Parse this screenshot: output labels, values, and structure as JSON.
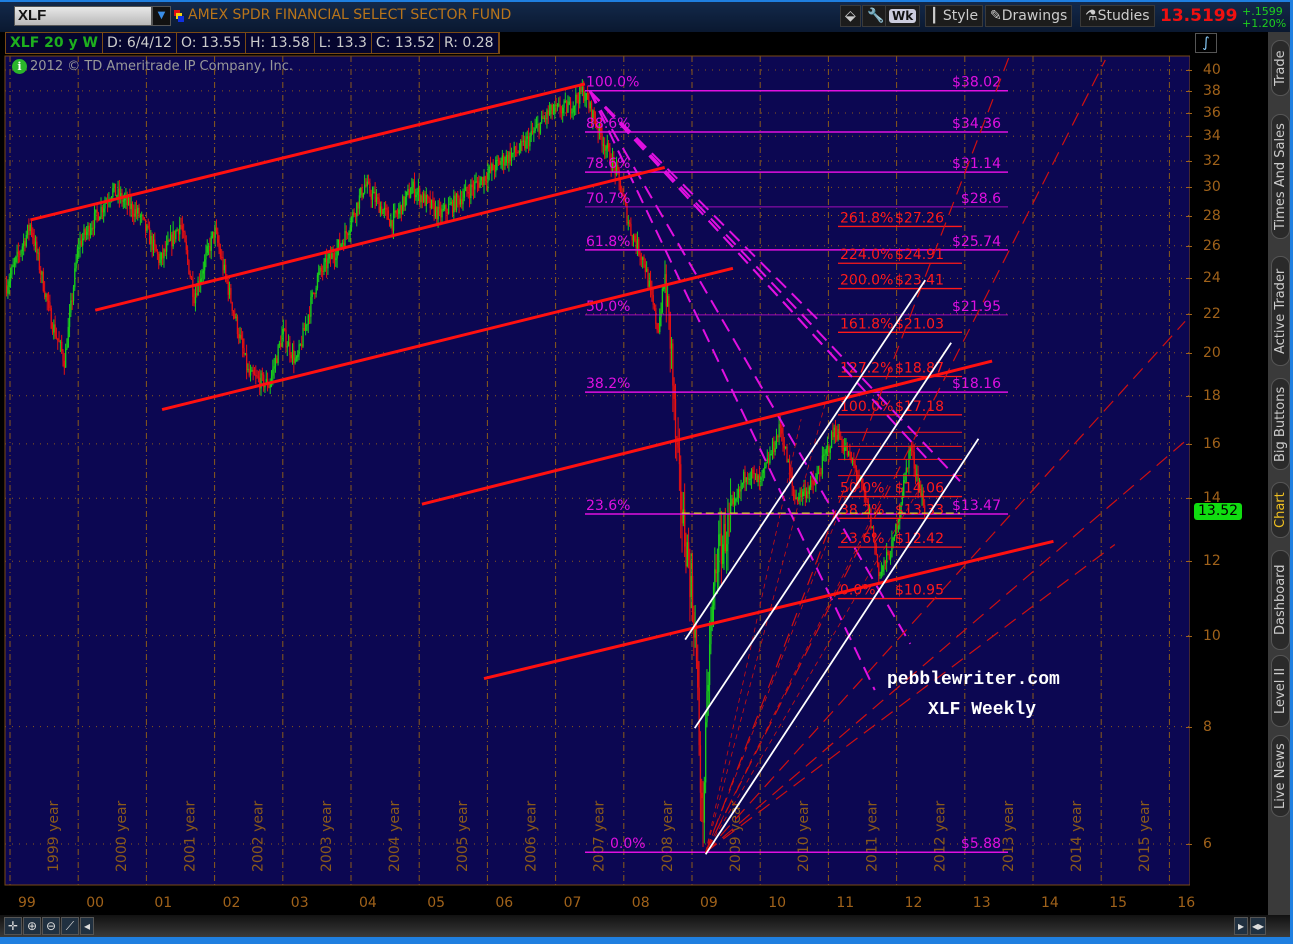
{
  "window": {
    "symbol": "XLF",
    "description": "AMEX SPDR FINANCIAL SELECT SECTOR FUND",
    "last": "13.5199",
    "change": "+.1599",
    "change_pct": "+1.20%"
  },
  "toolbar": {
    "interval": "Wk",
    "style": "Style",
    "drawings": "Drawings",
    "studies": "Studies"
  },
  "header": {
    "title": "XLF 20 y W",
    "date": "D: 6/4/12",
    "open": "O: 13.55",
    "high": "H: 13.58",
    "low": "L: 13.3",
    "close": "C: 13.52",
    "range": "R: 0.28"
  },
  "copyright": "2012 © TD Ameritrade IP Company, Inc.",
  "right_tabs": [
    "Trade",
    "Times And Sales",
    "Active Trader",
    "Big Buttons",
    "Chart",
    "Dashboard",
    "Level II",
    "Live News"
  ],
  "active_tab": "Chart",
  "watermark": {
    "line1": "pebblewriter.com",
    "line2": "XLF Weekly"
  },
  "colors": {
    "background": "#0c0752",
    "up": "#19d019",
    "down": "#e81010",
    "fib": "#e010e0",
    "ext": "#ff1a1a",
    "trend": "#ff1010",
    "channel": "#ffffff",
    "axis": "#a0621a",
    "last_badge": "#10dd10"
  },
  "chart_data": {
    "type": "candlestick",
    "scale": "log",
    "ylim": [
      5.6,
      41
    ],
    "xlim": [
      1998.9,
      2016.2
    ],
    "y_ticks": [
      "40",
      "38",
      "36",
      "34",
      "32",
      "30",
      "28",
      "26",
      "24",
      "22",
      "20",
      "18",
      "16",
      "14",
      "12",
      "10",
      "8",
      "6"
    ],
    "x_ticks": [
      "99",
      "00",
      "01",
      "02",
      "03",
      "04",
      "05",
      "06",
      "07",
      "08",
      "09",
      "10",
      "11",
      "12",
      "13",
      "14",
      "15",
      "16"
    ],
    "year_labels": [
      "1999 year",
      "2000 year",
      "2001 year",
      "2002 year",
      "2003 year",
      "2004 year",
      "2005 year",
      "2006 year",
      "2007 year",
      "2008 year",
      "2009 year",
      "2010 year",
      "2011 year",
      "2012 year",
      "2013 year",
      "2014 year",
      "2015 year"
    ],
    "last_price": "13.52",
    "price_path": [
      [
        1998.95,
        23.6
      ],
      [
        1999.3,
        27.4
      ],
      [
        1999.6,
        21.7
      ],
      [
        1999.8,
        19.6
      ],
      [
        2000.0,
        26
      ],
      [
        2000.5,
        29.8
      ],
      [
        2000.9,
        28
      ],
      [
        2001.2,
        25
      ],
      [
        2001.5,
        27.5
      ],
      [
        2001.7,
        23
      ],
      [
        2002.0,
        27
      ],
      [
        2002.5,
        18.9
      ],
      [
        2002.8,
        18.5
      ],
      [
        2003.0,
        21
      ],
      [
        2003.2,
        19.5
      ],
      [
        2003.5,
        24
      ],
      [
        2003.9,
        26.5
      ],
      [
        2004.2,
        30.2
      ],
      [
        2004.6,
        27.5
      ],
      [
        2004.9,
        30
      ],
      [
        2005.3,
        28
      ],
      [
        2005.9,
        30.5
      ],
      [
        2006.2,
        32
      ],
      [
        2006.5,
        33
      ],
      [
        2006.9,
        36
      ],
      [
        2007.2,
        36.5
      ],
      [
        2007.4,
        38
      ],
      [
        2007.6,
        35
      ],
      [
        2007.9,
        31
      ],
      [
        2008.1,
        27
      ],
      [
        2008.3,
        25
      ],
      [
        2008.5,
        21.1
      ],
      [
        2008.6,
        24
      ],
      [
        2008.7,
        20
      ],
      [
        2008.75,
        16.5
      ],
      [
        2008.85,
        13.5
      ],
      [
        2008.95,
        12
      ],
      [
        2009.05,
        10
      ],
      [
        2009.15,
        6.2
      ],
      [
        2009.25,
        9.5
      ],
      [
        2009.35,
        12
      ],
      [
        2009.6,
        13.5
      ],
      [
        2009.8,
        15
      ],
      [
        2010.0,
        14.5
      ],
      [
        2010.3,
        16.7
      ],
      [
        2010.5,
        14
      ],
      [
        2010.8,
        14.5
      ],
      [
        2011.1,
        16.6
      ],
      [
        2011.4,
        15
      ],
      [
        2011.6,
        13.5
      ],
      [
        2011.75,
        11.6
      ],
      [
        2011.95,
        12.5
      ],
      [
        2012.2,
        15.9
      ],
      [
        2012.42,
        13.52
      ]
    ],
    "fib_retracement": [
      {
        "pct": "100.0%",
        "price": "$38.02",
        "value": 38.02
      },
      {
        "pct": "88.6%",
        "price": "$34.36",
        "value": 34.36
      },
      {
        "pct": "78.6%",
        "price": "$31.14",
        "value": 31.14
      },
      {
        "pct": "70.7%",
        "price": "$28.6",
        "value": 28.6
      },
      {
        "pct": "61.8%",
        "price": "$25.74",
        "value": 25.74
      },
      {
        "pct": "50.0%",
        "price": "$21.95",
        "value": 21.95
      },
      {
        "pct": "38.2%",
        "price": "$18.16",
        "value": 18.16
      },
      {
        "pct": "23.6%",
        "price": "$13.47",
        "value": 13.47
      },
      {
        "pct": "0.0%",
        "price": "$5.88",
        "value": 5.88
      }
    ],
    "fib_extension": [
      {
        "pct": "261.8%",
        "price": "$27.26",
        "value": 27.26
      },
      {
        "pct": "224.0%",
        "price": "$24.91",
        "value": 24.91
      },
      {
        "pct": "200.0%",
        "price": "$23.41",
        "value": 23.41
      },
      {
        "pct": "161.8%",
        "price": "$21.03",
        "value": 21.03
      },
      {
        "pct": "127.2%",
        "price": "$18.87",
        "value": 18.87
      },
      {
        "pct": "100.0%",
        "price": "$17.18",
        "value": 17.18
      },
      {
        "pct": "50.0%",
        "price": "$14.06",
        "value": 14.06
      },
      {
        "pct": "38.2%",
        "price": "$13.33",
        "value": 13.33
      },
      {
        "pct": "23.6%",
        "price": "$12.42",
        "value": 12.42
      },
      {
        "pct": "0.0%",
        "price": "$10.95",
        "value": 10.95
      }
    ],
    "fib_extension_unlabeled": [
      16.46,
      15.9,
      15.4,
      14.8
    ],
    "trendlines": [
      [
        [
          1999.3,
          27.7
        ],
        [
          2007.43,
          38.66
        ]
      ],
      [
        [
          2000.25,
          22.2
        ],
        [
          2008.6,
          31.5
        ]
      ],
      [
        [
          2001.23,
          17.4
        ],
        [
          2009.6,
          24.6
        ]
      ],
      [
        [
          2005.04,
          13.8
        ],
        [
          2013.4,
          19.6
        ]
      ],
      [
        [
          2005.95,
          9.0
        ],
        [
          2014.3,
          12.6
        ]
      ]
    ],
    "channel_lines": [
      [
        [
          2008.9,
          9.9
        ],
        [
          2012.42,
          23.9
        ]
      ],
      [
        [
          2009.04,
          7.97
        ],
        [
          2012.8,
          20.5
        ]
      ],
      [
        [
          2009.2,
          5.85
        ],
        [
          2013.2,
          16.2
        ]
      ]
    ],
    "support_line": [
      [
        2008.85,
        13.5
      ],
      [
        2012.93,
        13.5
      ]
    ],
    "fan_origin_high": [
      2007.5,
      38.0
    ],
    "fan_ends_high": [
      [
        2011.68,
        8.75
      ],
      [
        2012.2,
        9.8
      ],
      [
        2012.49,
        15.3
      ],
      [
        2012.93,
        14.6
      ],
      [
        2011.39,
        18.7
      ],
      [
        2010.9,
        21.5
      ]
    ],
    "fan_origin_low": [
      2009.2,
      5.88
    ],
    "fan_ends_low": [
      [
        2013.66,
        41.5
      ],
      [
        2015.06,
        41
      ],
      [
        2016.23,
        21.6
      ],
      [
        2016.23,
        16.1
      ],
      [
        2015.2,
        12.5
      ]
    ],
    "fan_thin_ends": [
      [
        2010.6,
        17
      ],
      [
        2011.0,
        18.2
      ],
      [
        2011.4,
        15
      ],
      [
        2011.9,
        14.6
      ],
      [
        2012.3,
        14.2
      ]
    ]
  }
}
